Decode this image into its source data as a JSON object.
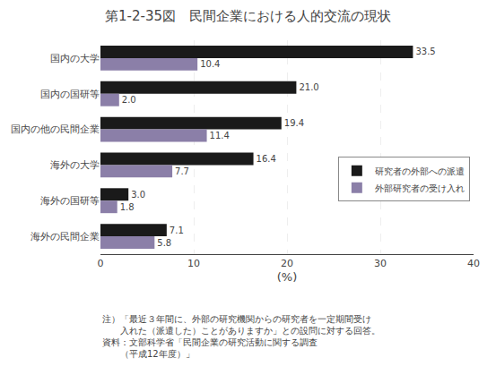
{
  "chart_data": {
    "type": "bar",
    "orientation": "horizontal",
    "title": "第1-2-35図　民間企業における人的交流の現状",
    "categories": [
      "国内の大学",
      "国内の国研等",
      "国内の他の民間企業",
      "海外の大学",
      "海外の国研等",
      "海外の民間企業"
    ],
    "series": [
      {
        "name": "研究者の外部への派遣",
        "color": "#1a1a1a",
        "values": [
          33.5,
          21.0,
          19.4,
          16.4,
          3.0,
          7.1
        ],
        "value_labels": [
          "33.5",
          "21.0",
          "19.4",
          "16.4",
          "3.0",
          "7.1"
        ]
      },
      {
        "name": "外部研究者の受け入れ",
        "color": "#8b7fa8",
        "values": [
          10.4,
          2.0,
          11.4,
          7.7,
          1.8,
          5.8
        ],
        "value_labels": [
          "10.4",
          "2.0",
          "11.4",
          "7.7",
          "1.8",
          "5.8"
        ]
      }
    ],
    "xlim": [
      0,
      40
    ],
    "xticks": [
      0,
      10,
      20,
      30,
      40
    ],
    "xlabel": "(%)",
    "grid": true,
    "data_labels": true,
    "legend": "right",
    "annotations": [
      "注）「最近３年間に、外部の研究機関からの研究者を一定期間受け",
      "　　入れた（派遣した）ことがありますか」との設問に対する回答。",
      "資料：文部科学省「民間企業の研究活動に関する調査",
      "　　（平成12年度）」"
    ]
  }
}
